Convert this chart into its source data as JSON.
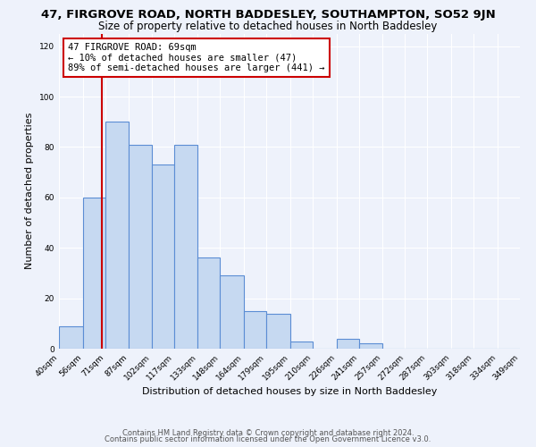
{
  "title": "47, FIRGROVE ROAD, NORTH BADDESLEY, SOUTHAMPTON, SO52 9JN",
  "subtitle": "Size of property relative to detached houses in North Baddesley",
  "xlabel": "Distribution of detached houses by size in North Baddesley",
  "ylabel": "Number of detached properties",
  "bin_edges": [
    40,
    56,
    71,
    87,
    102,
    117,
    133,
    148,
    164,
    179,
    195,
    210,
    226,
    241,
    257,
    272,
    287,
    303,
    318,
    334,
    349
  ],
  "bin_counts": [
    9,
    60,
    90,
    81,
    73,
    81,
    36,
    29,
    15,
    14,
    3,
    0,
    4,
    2,
    0,
    0,
    0,
    0,
    0,
    0
  ],
  "bar_color": "#c6d9f1",
  "bar_edge_color": "#5b8dd4",
  "bar_linewidth": 0.8,
  "vline_x": 69,
  "vline_color": "#cc0000",
  "vline_linewidth": 1.5,
  "annotation_text": "47 FIRGROVE ROAD: 69sqm\n← 10% of detached houses are smaller (47)\n89% of semi-detached houses are larger (441) →",
  "annotation_box_color": "white",
  "annotation_box_edge_color": "#cc0000",
  "ylim": [
    0,
    125
  ],
  "yticks": [
    0,
    20,
    40,
    60,
    80,
    100,
    120
  ],
  "tick_labels": [
    "40sqm",
    "56sqm",
    "71sqm",
    "87sqm",
    "102sqm",
    "117sqm",
    "133sqm",
    "148sqm",
    "164sqm",
    "179sqm",
    "195sqm",
    "210sqm",
    "226sqm",
    "241sqm",
    "257sqm",
    "272sqm",
    "287sqm",
    "303sqm",
    "318sqm",
    "334sqm",
    "349sqm"
  ],
  "footer_line1": "Contains HM Land Registry data © Crown copyright and database right 2024.",
  "footer_line2": "Contains public sector information licensed under the Open Government Licence v3.0.",
  "background_color": "#eef2fb",
  "title_fontsize": 9.5,
  "subtitle_fontsize": 8.5,
  "annotation_fontsize": 7.5,
  "axis_label_fontsize": 8,
  "tick_fontsize": 6.5,
  "footer_fontsize": 6
}
